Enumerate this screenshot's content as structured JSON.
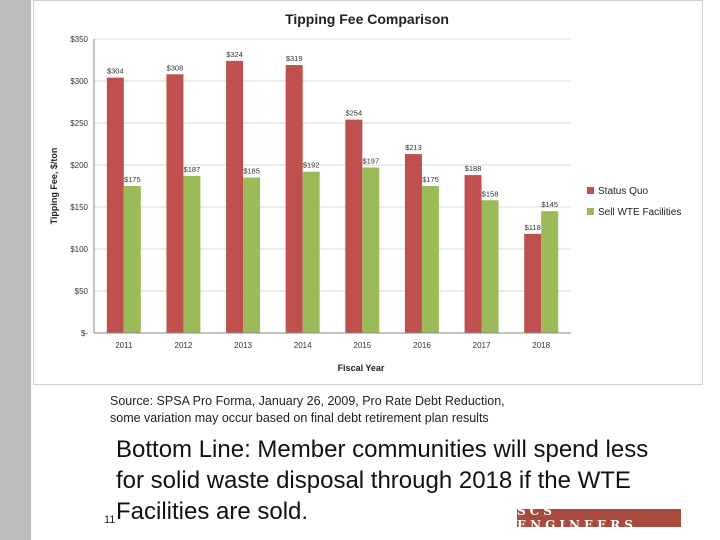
{
  "colors": {
    "status_quo": "#c0504d",
    "sell_wte": "#9bbb59",
    "left_bar": "#bdbdbd",
    "logo_bg": "#a84a3e"
  },
  "chart_data": {
    "type": "bar",
    "title": "Tipping Fee Comparison",
    "xlabel": "Fiscal Year",
    "ylabel": "Tipping Fee, $/ton",
    "categories": [
      "2011",
      "2012",
      "2013",
      "2014",
      "2015",
      "2016",
      "2017",
      "2018"
    ],
    "series": [
      {
        "name": "Status Quo",
        "values": [
          304,
          308,
          324,
          319,
          254,
          213,
          188,
          118
        ],
        "labels": [
          "$304",
          "$308",
          "$324",
          "$319",
          "$254",
          "$213",
          "$188",
          "$118"
        ]
      },
      {
        "name": "Sell WTE Facilities",
        "values": [
          175,
          187,
          185,
          192,
          197,
          175,
          158,
          145
        ],
        "labels": [
          "$175",
          "$187",
          "$185",
          "$192",
          "$197",
          "$175",
          "$158",
          "$145"
        ]
      }
    ],
    "ylim": [
      0,
      350
    ],
    "yticks": [
      0,
      50,
      100,
      150,
      200,
      250,
      300,
      350
    ],
    "ytick_labels": [
      "$-",
      "$50",
      "$100",
      "$150",
      "$200",
      "$250",
      "$300",
      "$350"
    ],
    "grid": true,
    "legend": "right"
  },
  "source_note": {
    "line1": "Source: SPSA Pro Forma, January 26, 2009, Pro Rate Debt Reduction,",
    "line2": "some variation may occur based on final debt retirement plan results"
  },
  "bottom_line": {
    "line1": "Bottom Line: Member communities will spend less",
    "line2": "for solid waste disposal through 2018 if the WTE",
    "line3": "Facilities are sold."
  },
  "slide_number": "11",
  "logo_text": "SCS ENGINEERS"
}
